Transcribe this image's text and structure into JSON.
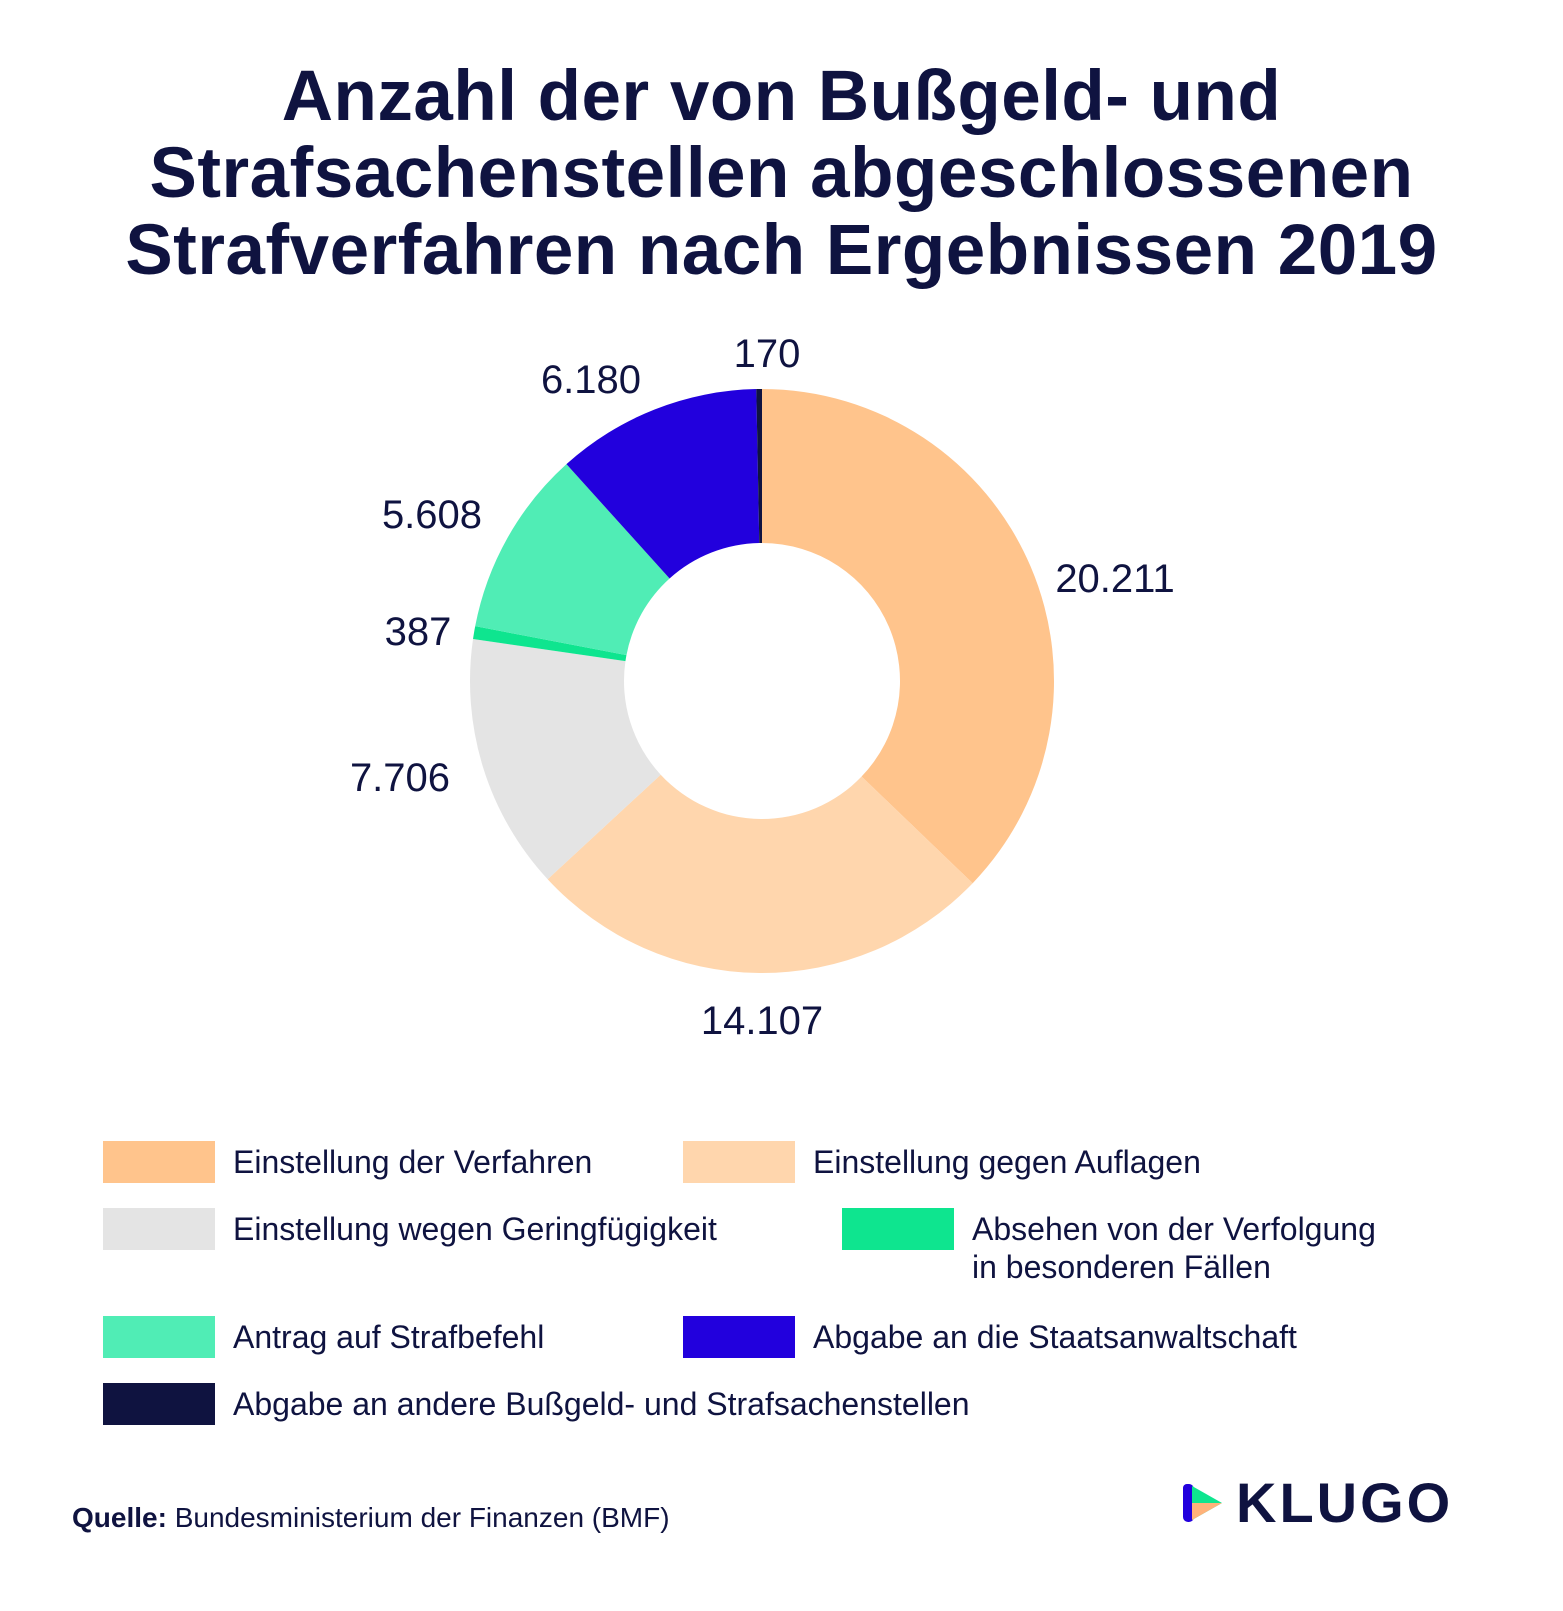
{
  "title_lines": [
    "Anzahl der von Bußgeld- und",
    "Strafsachenstellen abgeschlossenen",
    "Strafverfahren nach Ergebnissen 2019"
  ],
  "chart_data": {
    "type": "pie",
    "variant": "donut",
    "title": "Anzahl der von Bußgeld- und Strafsachenstellen abgeschlossenen Strafverfahren nach Ergebnissen 2019",
    "legend_position": "bottom",
    "slices": [
      {
        "name": "Einstellung der Verfahren",
        "value": 20211,
        "label": "20.211",
        "color": "#ffc48c"
      },
      {
        "name": "Einstellung gegen Auflagen",
        "value": 14107,
        "label": "14.107",
        "color": "#ffd6ad"
      },
      {
        "name": "Einstellung wegen Geringfügigkeit",
        "value": 7706,
        "label": "7.706",
        "color": "#e4e4e4"
      },
      {
        "name": "Absehen von der Verfolgung in besonderen Fällen",
        "value": 387,
        "label": "387",
        "color": "#0ee58f"
      },
      {
        "name": "Antrag auf Strafbefehl",
        "value": 5608,
        "label": "5.608",
        "color": "#50edb5"
      },
      {
        "name": "Abgabe an die Staatsanwaltschaft",
        "value": 6180,
        "label": "6.180",
        "color": "#2200dd"
      },
      {
        "name": "Abgabe an andere Bußgeld- und Strafsachenstellen",
        "value": 170,
        "label": "170",
        "color": "#0f1340"
      }
    ]
  },
  "legend": {
    "items": [
      {
        "lines": [
          "Einstellung der Verfahren"
        ],
        "color": "#ffc48c"
      },
      {
        "lines": [
          "Einstellung gegen Auflagen"
        ],
        "color": "#ffd6ad"
      },
      {
        "lines": [
          "Einstellung wegen Geringfügigkeit"
        ],
        "color": "#e4e4e4"
      },
      {
        "lines": [
          "Absehen von der Verfolgung",
          "in besonderen Fällen"
        ],
        "color": "#0ee58f"
      },
      {
        "lines": [
          "Antrag auf Strafbefehl"
        ],
        "color": "#50edb5"
      },
      {
        "lines": [
          "Abgabe an die Staatsanwaltschaft"
        ],
        "color": "#2200dd"
      },
      {
        "lines": [
          "Abgabe an andere Bußgeld- und Strafsachenstellen"
        ],
        "color": "#0f1340"
      }
    ]
  },
  "source": {
    "label": "Quelle:",
    "text": " Bundesministerium der Finanzen (BMF)"
  },
  "brand": {
    "name": "KLUGO",
    "logo_icon": "play-triangle-logo-icon"
  }
}
